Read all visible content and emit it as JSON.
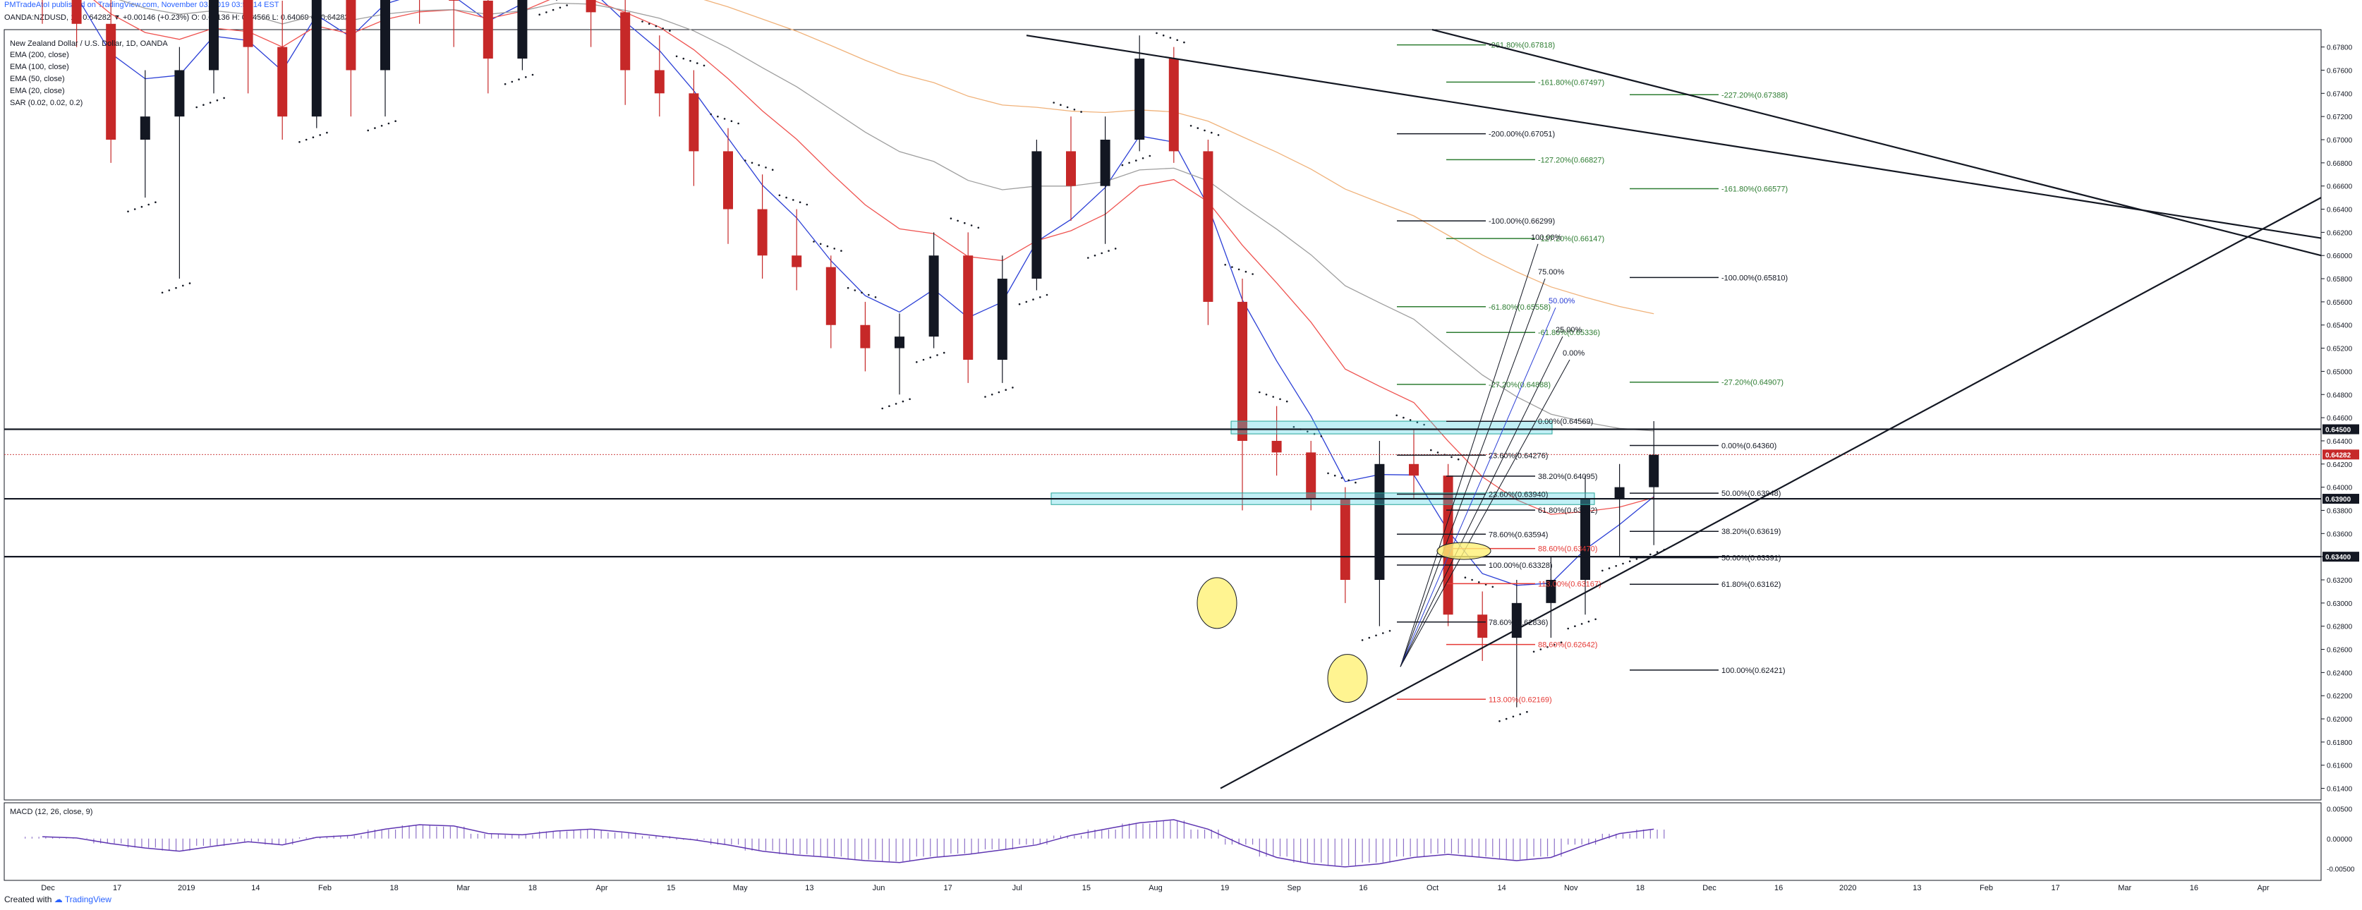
{
  "header": {
    "publisher_line": "PMTradeAtoI published on TradingView.com, November 03, 2019 03:53:14 EST",
    "symbol": "OANDA:NZDUSD, 1D",
    "change": "0.64282 ▼ +0.00146 (+0.23%)",
    "ohlc": "O: 0.64136 H: 0.64566 L: 0.64069 C: 0.64282",
    "series_title": "New Zealand Dollar / U.S. Dollar, 1D, OANDA",
    "indicators": [
      "EMA (200, close)",
      "EMA (100, close)",
      "EMA (50, close)",
      "EMA (20, close)",
      "SAR (0.02, 0.02, 0.2)"
    ]
  },
  "footer": {
    "created_with": "Created with",
    "brand": "TradingView"
  },
  "colors": {
    "bull": "#131722",
    "bear": "#c62828",
    "ema20": "#2b3fd6",
    "ema50": "#ef5350",
    "ema100": "#9e9e9e",
    "ema200": "#f0b27a",
    "sar": "#131722",
    "zone": "#4dd0e1",
    "fib_green": "#2e7d32",
    "fib_red": "#e53935",
    "macd": "#5e35b1",
    "highlight": "#fff176"
  },
  "chart_data": {
    "type": "candlestick",
    "y_axis": {
      "min": 0.613,
      "max": 0.6795,
      "ticks": [
        "0.67800",
        "0.67600",
        "0.67400",
        "0.67200",
        "0.67000",
        "0.66800",
        "0.66600",
        "0.66400",
        "0.66200",
        "0.66000",
        "0.65800",
        "0.65600",
        "0.65400",
        "0.65200",
        "0.65000",
        "0.64800",
        "0.64600",
        "0.64400",
        "0.64200",
        "0.64000",
        "0.63800",
        "0.63600",
        "0.63400",
        "0.63200",
        "0.63000",
        "0.62800",
        "0.62600",
        "0.62400",
        "0.62200",
        "0.62000",
        "0.61800",
        "0.61600",
        "0.61400"
      ],
      "tags": [
        {
          "label": "0.64500",
          "value": 0.645,
          "style": "dark"
        },
        {
          "label": "0.64282",
          "value": 0.64282,
          "style": "red"
        },
        {
          "label": "0.63900",
          "value": 0.639,
          "style": "dark"
        },
        {
          "label": "0.63400",
          "value": 0.634,
          "style": "dark"
        }
      ]
    },
    "x_axis": {
      "labels": [
        "Dec",
        "17",
        "2019",
        "14",
        "Feb",
        "18",
        "Mar",
        "18",
        "Apr",
        "15",
        "May",
        "13",
        "Jun",
        "17",
        "Jul",
        "15",
        "Aug",
        "19",
        "Sep",
        "16",
        "Oct",
        "14",
        "Nov",
        "18",
        "Dec",
        "16",
        "2020",
        "13",
        "Feb",
        "17",
        "Mar",
        "16",
        "Apr"
      ]
    },
    "horizontal_levels": [
      0.645,
      0.639,
      0.634
    ],
    "zones": [
      {
        "from": 0.6446,
        "to": 0.6457
      },
      {
        "from": 0.6385,
        "to": 0.6395
      }
    ],
    "trendlines": [
      {
        "name": "descending-upper",
        "from": [
          "Jul 20",
          0.679
        ],
        "to": [
          "May 2020",
          0.66
        ]
      },
      {
        "name": "ascending-support",
        "from": [
          "Sep 1",
          0.614
        ],
        "to": [
          "May 2020",
          0.665
        ]
      }
    ],
    "fib_labels": [
      {
        "text": "-261.80%(0.67818)",
        "value": 0.67818,
        "color": "green"
      },
      {
        "text": "-161.80%(0.67497)",
        "value": 0.67497,
        "color": "green"
      },
      {
        "text": "-227.20%(0.67388)",
        "value": 0.67388,
        "color": "green"
      },
      {
        "text": "-200.00%(0.67051)",
        "value": 0.67051,
        "color": "dark"
      },
      {
        "text": "-127.20%(0.66827)",
        "value": 0.66827,
        "color": "green"
      },
      {
        "text": "-161.80%(0.66577)",
        "value": 0.66577,
        "color": "green"
      },
      {
        "text": "-100.00%(0.66299)",
        "value": 0.66299,
        "color": "dark"
      },
      {
        "text": "-127.20%(0.66147)",
        "value": 0.66147,
        "color": "green"
      },
      {
        "text": "-100.00%(0.65810)",
        "value": 0.6581,
        "color": "dark"
      },
      {
        "text": "-61.80%(0.65558)",
        "value": 0.65558,
        "color": "green"
      },
      {
        "text": "-61.80%(0.65336)",
        "value": 0.65336,
        "color": "green"
      },
      {
        "text": "-27.20%(0.64907)",
        "value": 0.64907,
        "color": "green"
      },
      {
        "text": "-27.20%(0.64888)",
        "value": 0.64888,
        "color": "green"
      },
      {
        "text": "0.00%(0.64569)",
        "value": 0.64569,
        "color": "dark"
      },
      {
        "text": "0.00%(0.64360)",
        "value": 0.6436,
        "color": "dark"
      },
      {
        "text": "23.60%(0.64276)",
        "value": 0.64276,
        "color": "dark"
      },
      {
        "text": "38.20%(0.64095)",
        "value": 0.64095,
        "color": "dark"
      },
      {
        "text": "50.00%(0.63948)",
        "value": 0.63948,
        "color": "dark"
      },
      {
        "text": "23.60%(0.63940)",
        "value": 0.6394,
        "color": "dark"
      },
      {
        "text": "61.80%(0.63802)",
        "value": 0.63802,
        "color": "dark"
      },
      {
        "text": "38.20%(0.63619)",
        "value": 0.63619,
        "color": "dark"
      },
      {
        "text": "78.60%(0.63594)",
        "value": 0.63594,
        "color": "dark"
      },
      {
        "text": "88.60%(0.63470)",
        "value": 0.6347,
        "color": "red"
      },
      {
        "text": "50.00%(0.63391)",
        "value": 0.63391,
        "color": "dark"
      },
      {
        "text": "100.00%(0.63328)",
        "value": 0.63328,
        "color": "dark"
      },
      {
        "text": "113.00%(0.63167)",
        "value": 0.63167,
        "color": "red"
      },
      {
        "text": "61.80%(0.63162)",
        "value": 0.63162,
        "color": "dark"
      },
      {
        "text": "78.60%(0.62836)",
        "value": 0.62836,
        "color": "dark"
      },
      {
        "text": "88.60%(0.62642)",
        "value": 0.62642,
        "color": "red"
      },
      {
        "text": "100.00%(0.62421)",
        "value": 0.62421,
        "color": "dark"
      },
      {
        "text": "113.00%(0.62169)",
        "value": 0.62169,
        "color": "red"
      }
    ],
    "fan_labels": [
      {
        "text": "100.00%",
        "color": "dark"
      },
      {
        "text": "75.00%",
        "color": "dark"
      },
      {
        "text": "50.00%",
        "color": "blue"
      },
      {
        "text": "25.00%",
        "color": "dark"
      },
      {
        "text": "0.00%",
        "color": "dark"
      }
    ],
    "candles_weekly_approx": [
      {
        "w": "Dec 3",
        "o": 0.687,
        "h": 0.692,
        "l": 0.68,
        "c": 0.684
      },
      {
        "w": "Dec 10",
        "o": 0.684,
        "h": 0.689,
        "l": 0.678,
        "c": 0.68
      },
      {
        "w": "Dec 17",
        "o": 0.68,
        "h": 0.685,
        "l": 0.668,
        "c": 0.67
      },
      {
        "w": "Dec 24",
        "o": 0.67,
        "h": 0.676,
        "l": 0.665,
        "c": 0.672
      },
      {
        "w": "Dec 31",
        "o": 0.672,
        "h": 0.678,
        "l": 0.658,
        "c": 0.676
      },
      {
        "w": "Jan 7",
        "o": 0.676,
        "h": 0.688,
        "l": 0.674,
        "c": 0.684
      },
      {
        "w": "Jan 14",
        "o": 0.684,
        "h": 0.686,
        "l": 0.674,
        "c": 0.678
      },
      {
        "w": "Jan 21",
        "o": 0.678,
        "h": 0.682,
        "l": 0.67,
        "c": 0.672
      },
      {
        "w": "Jan 28",
        "o": 0.672,
        "h": 0.69,
        "l": 0.671,
        "c": 0.688
      },
      {
        "w": "Feb 4",
        "o": 0.688,
        "h": 0.694,
        "l": 0.672,
        "c": 0.676
      },
      {
        "w": "Feb 11",
        "o": 0.676,
        "h": 0.688,
        "l": 0.672,
        "c": 0.686
      },
      {
        "w": "Feb 18",
        "o": 0.686,
        "h": 0.692,
        "l": 0.68,
        "c": 0.684
      },
      {
        "w": "Feb 25",
        "o": 0.684,
        "h": 0.69,
        "l": 0.678,
        "c": 0.682
      },
      {
        "w": "Mar 4",
        "o": 0.682,
        "h": 0.684,
        "l": 0.674,
        "c": 0.677
      },
      {
        "w": "Mar 11",
        "o": 0.677,
        "h": 0.686,
        "l": 0.676,
        "c": 0.684
      },
      {
        "w": "Mar 18",
        "o": 0.684,
        "h": 0.694,
        "l": 0.682,
        "c": 0.688
      },
      {
        "w": "Mar 25",
        "o": 0.688,
        "h": 0.69,
        "l": 0.678,
        "c": 0.681
      },
      {
        "w": "Apr 1",
        "o": 0.681,
        "h": 0.684,
        "l": 0.673,
        "c": 0.676
      },
      {
        "w": "Apr 8",
        "o": 0.676,
        "h": 0.679,
        "l": 0.672,
        "c": 0.674
      },
      {
        "w": "Apr 15",
        "o": 0.674,
        "h": 0.676,
        "l": 0.666,
        "c": 0.669
      },
      {
        "w": "Apr 22",
        "o": 0.669,
        "h": 0.671,
        "l": 0.661,
        "c": 0.664
      },
      {
        "w": "Apr 29",
        "o": 0.664,
        "h": 0.667,
        "l": 0.658,
        "c": 0.66
      },
      {
        "w": "May 6",
        "o": 0.66,
        "h": 0.664,
        "l": 0.657,
        "c": 0.659
      },
      {
        "w": "May 13",
        "o": 0.659,
        "h": 0.66,
        "l": 0.652,
        "c": 0.654
      },
      {
        "w": "May 20",
        "o": 0.654,
        "h": 0.656,
        "l": 0.65,
        "c": 0.652
      },
      {
        "w": "May 27",
        "o": 0.652,
        "h": 0.655,
        "l": 0.648,
        "c": 0.653
      },
      {
        "w": "Jun 3",
        "o": 0.653,
        "h": 0.662,
        "l": 0.652,
        "c": 0.66
      },
      {
        "w": "Jun 10",
        "o": 0.66,
        "h": 0.662,
        "l": 0.649,
        "c": 0.651
      },
      {
        "w": "Jun 17",
        "o": 0.651,
        "h": 0.66,
        "l": 0.649,
        "c": 0.658
      },
      {
        "w": "Jun 24",
        "o": 0.658,
        "h": 0.67,
        "l": 0.657,
        "c": 0.669
      },
      {
        "w": "Jul 1",
        "o": 0.669,
        "h": 0.672,
        "l": 0.663,
        "c": 0.666
      },
      {
        "w": "Jul 8",
        "o": 0.666,
        "h": 0.672,
        "l": 0.661,
        "c": 0.67
      },
      {
        "w": "Jul 15",
        "o": 0.67,
        "h": 0.679,
        "l": 0.669,
        "c": 0.677
      },
      {
        "w": "Jul 22",
        "o": 0.677,
        "h": 0.678,
        "l": 0.668,
        "c": 0.669
      },
      {
        "w": "Jul 29",
        "o": 0.669,
        "h": 0.67,
        "l": 0.654,
        "c": 0.656
      },
      {
        "w": "Aug 5",
        "o": 0.656,
        "h": 0.658,
        "l": 0.638,
        "c": 0.644
      },
      {
        "w": "Aug 12",
        "o": 0.644,
        "h": 0.647,
        "l": 0.641,
        "c": 0.643
      },
      {
        "w": "Aug 19",
        "o": 0.643,
        "h": 0.644,
        "l": 0.638,
        "c": 0.639
      },
      {
        "w": "Aug 26",
        "o": 0.639,
        "h": 0.64,
        "l": 0.63,
        "c": 0.632
      },
      {
        "w": "Sep 2",
        "o": 0.632,
        "h": 0.644,
        "l": 0.628,
        "c": 0.642
      },
      {
        "w": "Sep 9",
        "o": 0.642,
        "h": 0.645,
        "l": 0.639,
        "c": 0.641
      },
      {
        "w": "Sep 16",
        "o": 0.641,
        "h": 0.642,
        "l": 0.628,
        "c": 0.629
      },
      {
        "w": "Sep 23",
        "o": 0.629,
        "h": 0.631,
        "l": 0.625,
        "c": 0.627
      },
      {
        "w": "Sep 30",
        "o": 0.627,
        "h": 0.632,
        "l": 0.621,
        "c": 0.63
      },
      {
        "w": "Oct 7",
        "o": 0.63,
        "h": 0.634,
        "l": 0.627,
        "c": 0.632
      },
      {
        "w": "Oct 14",
        "o": 0.632,
        "h": 0.641,
        "l": 0.629,
        "c": 0.639
      },
      {
        "w": "Oct 21",
        "o": 0.639,
        "h": 0.642,
        "l": 0.634,
        "c": 0.64
      },
      {
        "w": "Oct 28",
        "o": 0.64,
        "h": 0.6457,
        "l": 0.635,
        "c": 0.6428
      }
    ],
    "macd_panel": {
      "title": "MACD (12, 26, close, 9)",
      "y_ticks": [
        "0.00500",
        "0.00000",
        "-0.00500"
      ],
      "y_range": [
        -0.0065,
        0.0055
      ],
      "histogram_weekly_approx": [
        0.0003,
        0.0001,
        -0.0008,
        -0.0015,
        -0.002,
        -0.0012,
        -0.0005,
        -0.001,
        0.0002,
        0.0005,
        0.0015,
        0.0022,
        0.002,
        0.0008,
        0.0006,
        0.0012,
        0.0015,
        0.001,
        0.0004,
        -0.0002,
        -0.001,
        -0.002,
        -0.0026,
        -0.003,
        -0.0035,
        -0.0038,
        -0.003,
        -0.0025,
        -0.0018,
        -0.001,
        0.0005,
        0.0015,
        0.0025,
        0.003,
        0.0015,
        -0.001,
        -0.003,
        -0.004,
        -0.0045,
        -0.004,
        -0.003,
        -0.0025,
        -0.003,
        -0.0035,
        -0.003,
        -0.001,
        0.0008,
        0.0015
      ]
    }
  }
}
